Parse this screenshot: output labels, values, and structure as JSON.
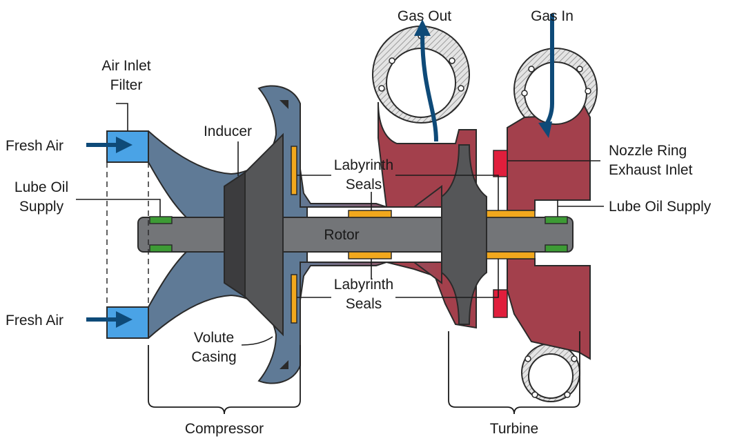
{
  "labels": {
    "gas_out": "Gas Out",
    "gas_in": "Gas In",
    "air_inlet_filter_1": "Air Inlet",
    "air_inlet_filter_2": "Filter",
    "inducer": "Inducer",
    "fresh_air_top": "Fresh Air",
    "fresh_air_bottom": "Fresh Air",
    "lube_oil_left_1": "Lube Oil",
    "lube_oil_left_2": "Supply",
    "lube_oil_right": "Lube Oil Supply",
    "labyrinth_top_1": "Labyrinth",
    "labyrinth_top_2": "Seals",
    "labyrinth_bottom_1": "Labyrinth",
    "labyrinth_bottom_2": "Seals",
    "nozzle_ring_1": "Nozzle Ring",
    "nozzle_ring_2": "Exhaust Inlet",
    "rotor": "Rotor",
    "volute_1": "Volute",
    "volute_2": "Casing",
    "compressor": "Compressor",
    "turbine": "Turbine"
  },
  "colors": {
    "compressor_housing": "#5f7a96",
    "turbine_housing": "#a3404c",
    "rotor_shaft": "#737578",
    "impeller_dark": "#3c3c3e",
    "impeller": "#555658",
    "filter": "#4aa3e6",
    "seal": "#f2a81d",
    "bearing": "#3d9b35",
    "nozzle_ring": "#e01e3c",
    "flow_arrow": "#0e4a78",
    "hatch": "#b5b5b5"
  }
}
